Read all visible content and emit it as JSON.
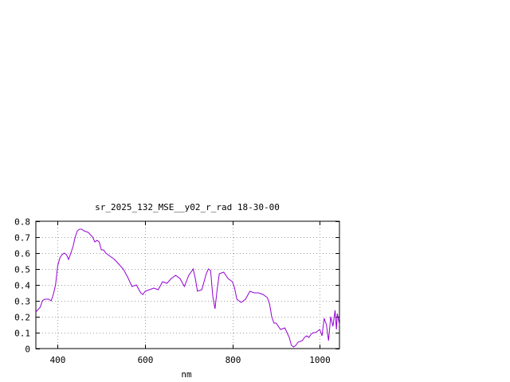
{
  "chart_data": {
    "type": "line",
    "title": "sr_2025_132_MSE__y02_r_rad 18-30-00",
    "xlabel": "nm",
    "ylabel": "",
    "xlim": [
      350,
      1045
    ],
    "ylim": [
      0,
      0.8
    ],
    "grid": true,
    "xticks": [
      400,
      600,
      800,
      1000
    ],
    "xtick_labels": [
      "400",
      "600",
      "800",
      "1000"
    ],
    "yticks": [
      0,
      0.1,
      0.2,
      0.3,
      0.4,
      0.5,
      0.6,
      0.7,
      0.8
    ],
    "ytick_labels": [
      "0",
      "0.1",
      "0.2",
      "0.3",
      "0.4",
      "0.5",
      "0.6",
      "0.7",
      "0.8"
    ],
    "colors": {
      "series": "#9400d3",
      "grid": "#a0a0a0",
      "axis": "#000000"
    },
    "series": [
      {
        "x": [
          350,
          360,
          365,
          370,
          380,
          385,
          390,
          395,
          400,
          405,
          410,
          415,
          420,
          425,
          430,
          435,
          440,
          445,
          450,
          455,
          460,
          470,
          480,
          485,
          490,
          495,
          500,
          505,
          510,
          520,
          530,
          540,
          550,
          560,
          570,
          580,
          590,
          595,
          600,
          610,
          620,
          630,
          640,
          650,
          660,
          670,
          680,
          690,
          700,
          705,
          710,
          715,
          720,
          730,
          740,
          745,
          750,
          755,
          760,
          765,
          770,
          780,
          790,
          800,
          805,
          810,
          820,
          830,
          840,
          850,
          860,
          870,
          880,
          885,
          890,
          895,
          900,
          910,
          920,
          925,
          930,
          935,
          940,
          945,
          950,
          960,
          965,
          970,
          975,
          980,
          985,
          990,
          995,
          1000,
          1005,
          1010,
          1015,
          1020,
          1025,
          1030,
          1035,
          1038,
          1040,
          1043,
          1045
        ],
        "y": [
          0.23,
          0.26,
          0.3,
          0.31,
          0.31,
          0.3,
          0.34,
          0.4,
          0.52,
          0.57,
          0.59,
          0.6,
          0.59,
          0.56,
          0.6,
          0.64,
          0.7,
          0.74,
          0.75,
          0.75,
          0.74,
          0.73,
          0.7,
          0.67,
          0.68,
          0.67,
          0.62,
          0.62,
          0.6,
          0.58,
          0.56,
          0.53,
          0.5,
          0.45,
          0.39,
          0.4,
          0.35,
          0.34,
          0.36,
          0.37,
          0.38,
          0.37,
          0.42,
          0.41,
          0.44,
          0.46,
          0.44,
          0.39,
          0.46,
          0.48,
          0.5,
          0.44,
          0.36,
          0.37,
          0.47,
          0.5,
          0.49,
          0.33,
          0.25,
          0.37,
          0.47,
          0.48,
          0.44,
          0.42,
          0.38,
          0.31,
          0.29,
          0.31,
          0.36,
          0.35,
          0.35,
          0.34,
          0.32,
          0.28,
          0.2,
          0.16,
          0.16,
          0.12,
          0.13,
          0.1,
          0.07,
          0.02,
          0.01,
          0.02,
          0.04,
          0.05,
          0.07,
          0.08,
          0.07,
          0.09,
          0.1,
          0.1,
          0.11,
          0.12,
          0.08,
          0.19,
          0.15,
          0.05,
          0.2,
          0.14,
          0.24,
          0.12,
          0.22,
          0.18,
          0.15
        ]
      }
    ]
  }
}
